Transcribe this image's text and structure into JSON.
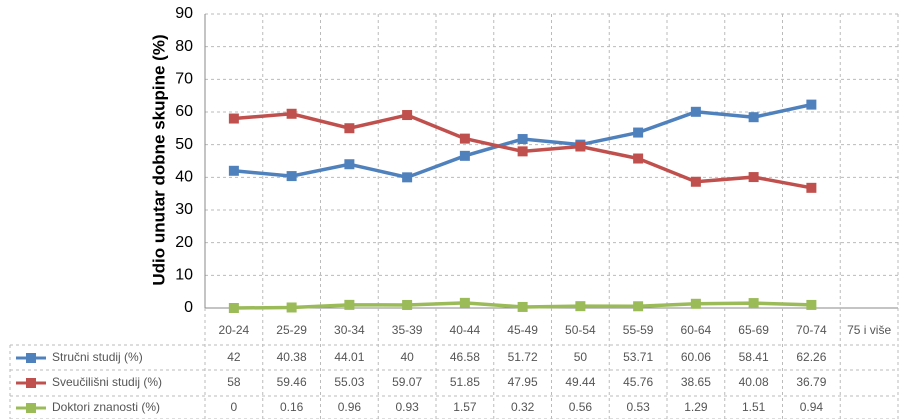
{
  "chart_data": {
    "type": "line",
    "y_label": "Udio unutar dobne skupine (%)",
    "categories": [
      "20-24",
      "25-29",
      "30-34",
      "35-39",
      "40-44",
      "45-49",
      "50-54",
      "55-59",
      "60-64",
      "65-69",
      "70-74",
      "75 i više"
    ],
    "series": [
      {
        "name": "Stručni studij (%)",
        "color": "#4f81bd",
        "values": [
          42,
          40.38,
          44.01,
          40,
          46.58,
          51.72,
          50,
          53.71,
          60.06,
          58.41,
          62.26,
          null
        ]
      },
      {
        "name": "Sveučilišni studij (%)",
        "color": "#c0504d",
        "values": [
          58,
          59.46,
          55.03,
          59.07,
          51.85,
          47.95,
          49.44,
          45.76,
          38.65,
          40.08,
          36.79,
          null
        ]
      },
      {
        "name": "Doktori znanosti (%)",
        "color": "#9bbb59",
        "values": [
          0,
          0.16,
          0.96,
          0.93,
          1.57,
          0.32,
          0.56,
          0.53,
          1.29,
          1.51,
          0.94,
          null
        ]
      }
    ],
    "ylim": [
      0,
      90
    ],
    "yticks": [
      0,
      10,
      20,
      30,
      40,
      50,
      60,
      70,
      80,
      90
    ],
    "grid": true
  }
}
